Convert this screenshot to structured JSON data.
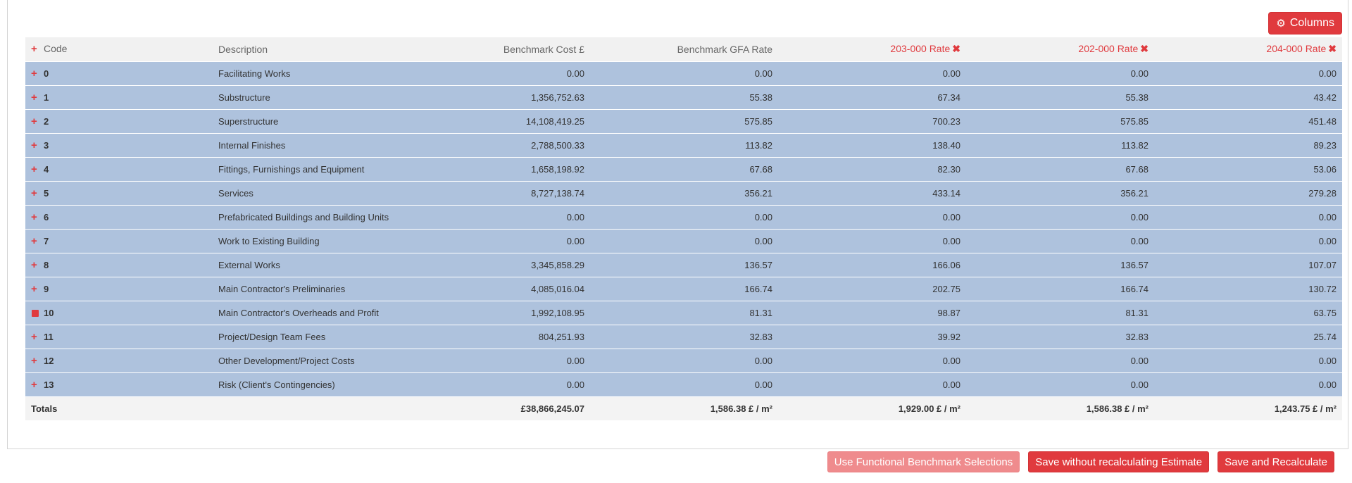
{
  "toolbar": {
    "columns_label": "Columns",
    "columns_icon": "gear-icon"
  },
  "table": {
    "headers": {
      "code": "Code",
      "description": "Description",
      "benchmark_cost": "Benchmark Cost £",
      "benchmark_gfa_rate": "Benchmark GFA Rate",
      "rate_203": "203-000 Rate",
      "rate_202": "202-000 Rate",
      "rate_204": "204-000 Rate"
    },
    "rows": [
      {
        "code": "0",
        "description": "Facilitating Works",
        "cost": "0.00",
        "gfa": "0.00",
        "r203": "0.00",
        "r202": "0.00",
        "r204": "0.00"
      },
      {
        "code": "1",
        "description": "Substructure",
        "cost": "1,356,752.63",
        "gfa": "55.38",
        "r203": "67.34",
        "r202": "55.38",
        "r204": "43.42"
      },
      {
        "code": "2",
        "description": "Superstructure",
        "cost": "14,108,419.25",
        "gfa": "575.85",
        "r203": "700.23",
        "r202": "575.85",
        "r204": "451.48"
      },
      {
        "code": "3",
        "description": "Internal Finishes",
        "cost": "2,788,500.33",
        "gfa": "113.82",
        "r203": "138.40",
        "r202": "113.82",
        "r204": "89.23"
      },
      {
        "code": "4",
        "description": "Fittings, Furnishings and Equipment",
        "cost": "1,658,198.92",
        "gfa": "67.68",
        "r203": "82.30",
        "r202": "67.68",
        "r204": "53.06"
      },
      {
        "code": "5",
        "description": "Services",
        "cost": "8,727,138.74",
        "gfa": "356.21",
        "r203": "433.14",
        "r202": "356.21",
        "r204": "279.28"
      },
      {
        "code": "6",
        "description": "Prefabricated Buildings and Building Units",
        "cost": "0.00",
        "gfa": "0.00",
        "r203": "0.00",
        "r202": "0.00",
        "r204": "0.00"
      },
      {
        "code": "7",
        "description": "Work to Existing Building",
        "cost": "0.00",
        "gfa": "0.00",
        "r203": "0.00",
        "r202": "0.00",
        "r204": "0.00"
      },
      {
        "code": "8",
        "description": "External Works",
        "cost": "3,345,858.29",
        "gfa": "136.57",
        "r203": "166.06",
        "r202": "136.57",
        "r204": "107.07"
      },
      {
        "code": "9",
        "description": "Main Contractor's Preliminaries",
        "cost": "4,085,016.04",
        "gfa": "166.74",
        "r203": "202.75",
        "r202": "166.74",
        "r204": "130.72"
      },
      {
        "code": "10",
        "description": "Main Contractor's Overheads and Profit",
        "cost": "1,992,108.95",
        "gfa": "81.31",
        "r203": "98.87",
        "r202": "81.31",
        "r204": "63.75"
      },
      {
        "code": "11",
        "description": "Project/Design Team Fees",
        "cost": "804,251.93",
        "gfa": "32.83",
        "r203": "39.92",
        "r202": "32.83",
        "r204": "25.74"
      },
      {
        "code": "12",
        "description": "Other Development/Project Costs",
        "cost": "0.00",
        "gfa": "0.00",
        "r203": "0.00",
        "r202": "0.00",
        "r204": "0.00"
      },
      {
        "code": "13",
        "description": "Risk (Client's Contingencies)",
        "cost": "0.00",
        "gfa": "0.00",
        "r203": "0.00",
        "r202": "0.00",
        "r204": "0.00"
      }
    ],
    "totals": {
      "label": "Totals",
      "cost": "£38,866,245.07",
      "gfa": "1,586.38 £ / m²",
      "r203": "1,929.00 £ / m²",
      "r202": "1,586.38 £ / m²",
      "r204": "1,243.75 £ / m²"
    }
  },
  "footer": {
    "use_functional_label": "Use Functional Benchmark Selections",
    "save_without_label": "Save without recalculating Estimate",
    "save_recalc_label": "Save and Recalculate"
  },
  "colors": {
    "accent": "#e03a3e",
    "row_bg": "#aec2dd",
    "header_bg": "#f1f1f1"
  }
}
